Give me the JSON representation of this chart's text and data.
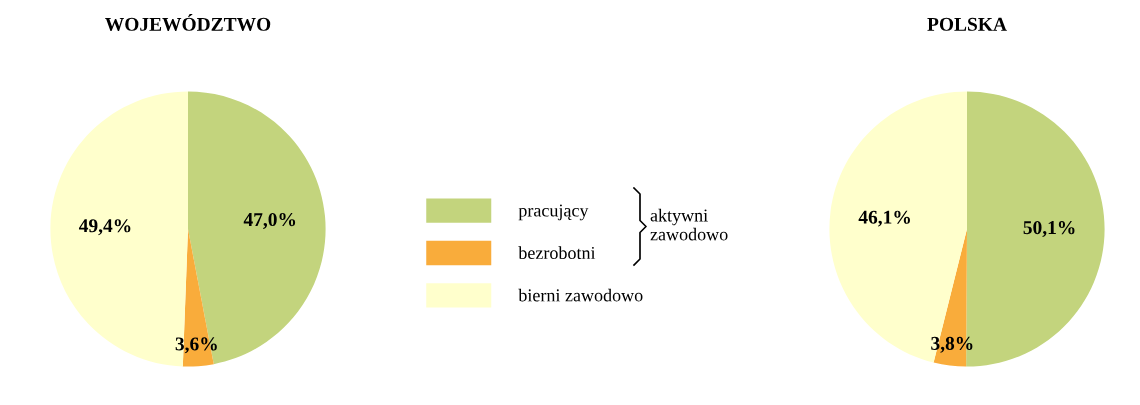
{
  "chart_data": [
    {
      "type": "pie",
      "title": "WOJEWÓDZTWO",
      "categories": [
        "pracujący",
        "bezrobotni",
        "bierni zawodowo"
      ],
      "values": [
        47.0,
        3.6,
        49.4
      ],
      "value_labels": [
        "47,0%",
        "3,6%",
        "49,4%"
      ],
      "colors": [
        "#c3d47d",
        "#f9ac3b",
        "#ffffcc"
      ],
      "legend": "right",
      "annotations": [
        "aktywni zawodowo"
      ]
    },
    {
      "type": "pie",
      "title": "POLSKA",
      "categories": [
        null,
        null,
        null
      ],
      "values": [
        50.1,
        3.8,
        46.1
      ],
      "value_labels": [
        "50,1%",
        "3,8%",
        "46,1%"
      ],
      "colors": [
        "#c3d47d",
        "#f9ac3b",
        "#ffffcc"
      ]
    }
  ]
}
